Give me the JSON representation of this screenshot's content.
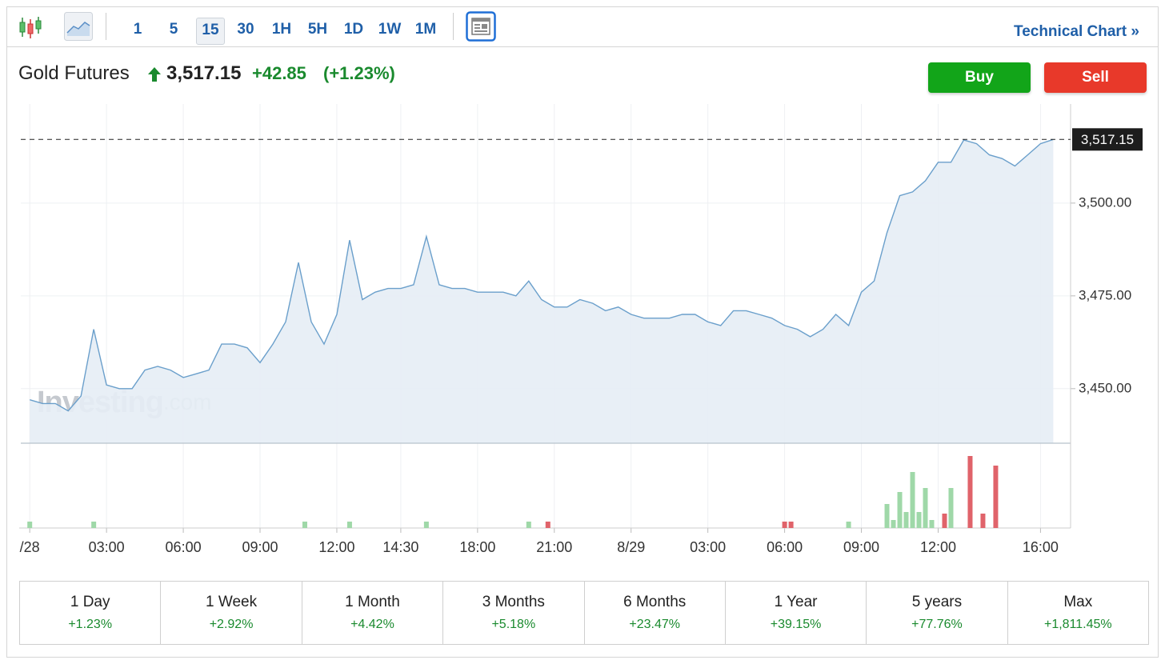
{
  "toolbar": {
    "intervals": [
      "1",
      "5",
      "15",
      "30",
      "1H",
      "5H",
      "1D",
      "1W",
      "1M"
    ],
    "selected_interval": 2,
    "technical_chart": "Technical Chart",
    "chevron": "»"
  },
  "header": {
    "name": "Gold Futures",
    "price": "3,517.15",
    "change": "+42.85",
    "change_percent": "(+1.23%)"
  },
  "buttons": {
    "buy": "Buy",
    "sell": "Sell"
  },
  "chart_data": {
    "type": "area",
    "watermark_brand": "Investing",
    "watermark_suffix": ".com",
    "x": [
      0,
      1,
      2,
      3,
      4,
      5,
      6,
      7,
      8,
      9,
      10,
      11,
      12,
      13,
      14,
      15,
      16,
      17,
      18,
      19,
      20,
      21,
      22,
      23,
      24,
      25,
      26,
      27,
      28,
      29,
      30,
      31,
      32,
      33,
      34,
      35,
      36,
      37,
      38,
      39,
      40,
      41,
      42,
      43,
      44,
      45,
      46,
      47,
      48,
      49,
      50,
      51,
      52,
      53,
      54,
      55,
      56,
      57,
      58,
      59,
      60,
      61,
      62,
      63,
      64,
      65,
      66,
      67,
      68,
      69,
      70,
      71,
      72,
      73,
      74,
      75,
      76,
      77,
      78,
      79,
      80
    ],
    "series": [
      {
        "color": "#6a9fcb",
        "values": [
          3447,
          3446,
          3446,
          3444,
          3448,
          3466,
          3451,
          3450,
          3450,
          3455,
          3456,
          3455,
          3453,
          3454,
          3455,
          3462,
          3462,
          3461,
          3457,
          3462,
          3468,
          3484,
          3468,
          3462,
          3470,
          3490,
          3474,
          3476,
          3477,
          3477,
          3478,
          3491,
          3478,
          3477,
          3477,
          3476,
          3476,
          3476,
          3475,
          3479,
          3474,
          3472,
          3472,
          3474,
          3473,
          3471,
          3472,
          3470,
          3469,
          3469,
          3469,
          3470,
          3470,
          3468,
          3467,
          3471,
          3471,
          3470,
          3469,
          3467,
          3466,
          3464,
          3466,
          3470,
          3467,
          3476,
          3479,
          3492,
          3502,
          3503,
          3506,
          3511,
          3511,
          3517,
          3516,
          3513,
          3512,
          3510,
          3513,
          3516,
          3517.15
        ]
      }
    ],
    "xlim": [
      -0.7,
      80.1
    ],
    "xticks": [
      {
        "value": 0,
        "label": "/28"
      },
      {
        "value": 6,
        "label": "03:00"
      },
      {
        "value": 12,
        "label": "06:00"
      },
      {
        "value": 18,
        "label": "09:00"
      },
      {
        "value": 24,
        "label": "12:00"
      },
      {
        "value": 29,
        "label": "14:30"
      },
      {
        "value": 35,
        "label": "18:00"
      },
      {
        "value": 41,
        "label": "21:00"
      },
      {
        "value": 47,
        "label": "8/29"
      },
      {
        "value": 53,
        "label": "03:00"
      },
      {
        "value": 59,
        "label": "06:00"
      },
      {
        "value": 65,
        "label": "09:00"
      },
      {
        "value": 71,
        "label": "12:00"
      },
      {
        "value": 79,
        "label": "16:00"
      }
    ],
    "ylim": [
      3435.3,
      3526.7
    ],
    "yticks": [
      {
        "value": 3450,
        "label": "3,450.00"
      },
      {
        "value": 3475,
        "label": "3,475.00"
      },
      {
        "value": 3500,
        "label": "3,500.00"
      }
    ],
    "last_price": {
      "value": 3517.15,
      "label": "3,517.15"
    },
    "grid": true,
    "volume": {
      "x": [
        0,
        5,
        21.5,
        25,
        31,
        39,
        40.5,
        59,
        59.5,
        64,
        67,
        67.5,
        68,
        68.5,
        69,
        69.5,
        70,
        70.5,
        71.5,
        72,
        73.5,
        74.5,
        75.5
      ],
      "values": [
        8,
        8,
        8,
        8,
        8,
        8,
        8,
        8,
        8,
        8,
        30,
        10,
        45,
        20,
        70,
        20,
        50,
        10,
        18,
        50,
        90,
        18,
        78
      ],
      "colors": [
        "#9fd8a8",
        "#9fd8a8",
        "#9fd8a8",
        "#9fd8a8",
        "#9fd8a8",
        "#9fd8a8",
        "#e0636a",
        "#e0636a",
        "#e0636a",
        "#9fd8a8",
        "#9fd8a8",
        "#9fd8a8",
        "#9fd8a8",
        "#9fd8a8",
        "#9fd8a8",
        "#9fd8a8",
        "#9fd8a8",
        "#9fd8a8",
        "#e0636a",
        "#9fd8a8",
        "#e0636a",
        "#e0636a",
        "#e0636a"
      ]
    }
  },
  "periods": [
    {
      "label": "1 Day",
      "change": "+1.23%"
    },
    {
      "label": "1 Week",
      "change": "+2.92%"
    },
    {
      "label": "1 Month",
      "change": "+4.42%"
    },
    {
      "label": "3 Months",
      "change": "+5.18%"
    },
    {
      "label": "6 Months",
      "change": "+23.47%"
    },
    {
      "label": "1 Year",
      "change": "+39.15%"
    },
    {
      "label": "5 years",
      "change": "+77.76%"
    },
    {
      "label": "Max",
      "change": "+1,811.45%"
    }
  ]
}
